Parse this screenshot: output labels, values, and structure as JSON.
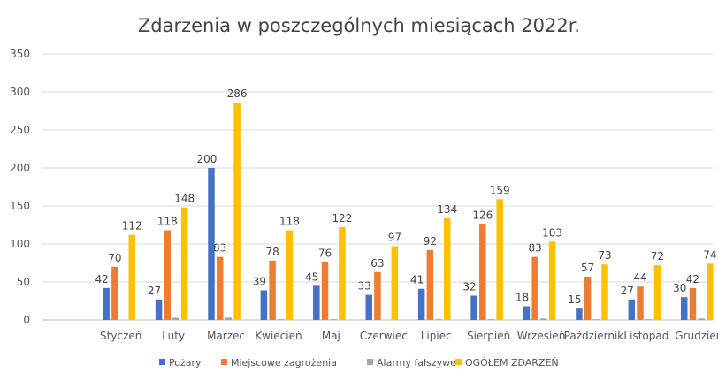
{
  "chart_data": {
    "type": "bar",
    "title": "Zdarzenia w poszczególnych miesiącach 2022r.",
    "xlabel": "",
    "ylabel": "",
    "ylim": [
      0,
      350
    ],
    "yticks": [
      0,
      50,
      100,
      150,
      200,
      250,
      300,
      350
    ],
    "grid": true,
    "legend_position": "bottom",
    "categories": [
      "Styczeń",
      "Luty",
      "Marzec",
      "Kwiecień",
      "Maj",
      "Czerwiec",
      "Lipiec",
      "Sierpień",
      "Wrzesień",
      "Październik",
      "Listopad",
      "Grudzień"
    ],
    "series": [
      {
        "name": "Pożary",
        "color": "#4472c4",
        "values": [
          42,
          27,
          200,
          39,
          45,
          33,
          41,
          32,
          18,
          15,
          27,
          30
        ],
        "labeled": true
      },
      {
        "name": "Miejscowe zagrożenia",
        "color": "#ed7d31",
        "values": [
          70,
          118,
          83,
          78,
          76,
          63,
          92,
          126,
          83,
          57,
          44,
          42
        ],
        "labeled": true
      },
      {
        "name": "Alarmy fałszywe",
        "color": "#a5a5a5",
        "values": [
          0,
          3,
          3,
          1,
          1,
          0,
          1,
          1,
          2,
          1,
          1,
          2
        ],
        "labeled": false
      },
      {
        "name": "OGÓŁEM ZDARZEŃ",
        "color": "#ffc000",
        "values": [
          112,
          148,
          286,
          118,
          122,
          97,
          134,
          159,
          103,
          73,
          72,
          74
        ],
        "labeled": true
      }
    ]
  }
}
